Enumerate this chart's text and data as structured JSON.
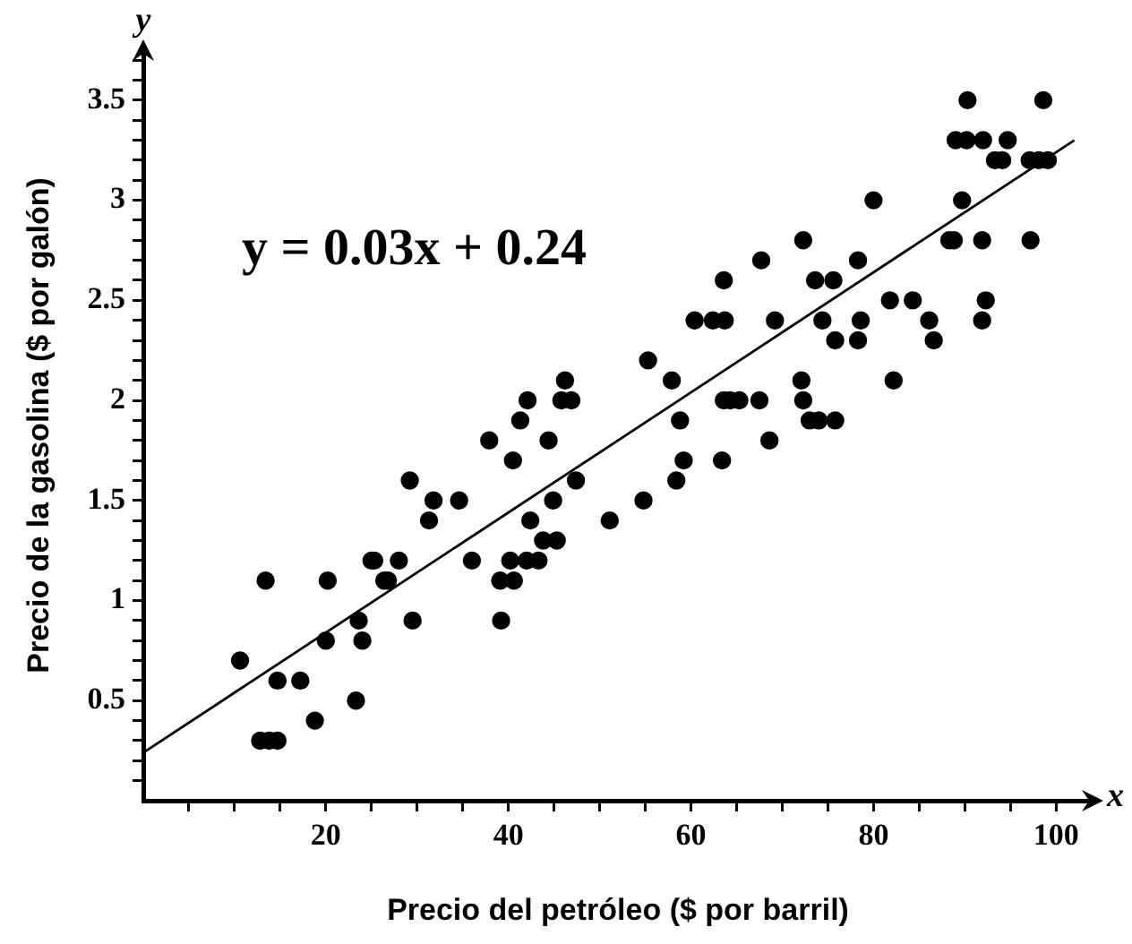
{
  "chart_data": {
    "type": "scatter",
    "xlabel": "Precio del petróleo ($ por barril)",
    "ylabel": "Precio de la gasolina ($ por galón)",
    "annotations": [
      "y = 0.03x + 0.24",
      "x",
      "y"
    ],
    "xlim": [
      0,
      104
    ],
    "ylim": [
      0,
      3.75
    ],
    "xticks": [
      {
        "value": 5,
        "label": null
      },
      {
        "value": 10,
        "label": null
      },
      {
        "value": 15,
        "label": null
      },
      20,
      {
        "value": 25,
        "label": null
      },
      {
        "value": 30,
        "label": null
      },
      {
        "value": 35,
        "label": null
      },
      40,
      {
        "value": 45,
        "label": null
      },
      {
        "value": 50,
        "label": null
      },
      {
        "value": 55,
        "label": null
      },
      60,
      {
        "value": 65,
        "label": null
      },
      {
        "value": 70,
        "label": null
      },
      {
        "value": 75,
        "label": null
      },
      80,
      {
        "value": 85,
        "label": null
      },
      {
        "value": 90,
        "label": null
      },
      {
        "value": 95,
        "label": null
      },
      100
    ],
    "yticks": [
      {
        "value": 0.1,
        "label": null
      },
      {
        "value": 0.2,
        "label": null
      },
      {
        "value": 0.3,
        "label": null
      },
      {
        "value": 0.4,
        "label": null
      },
      0.5,
      {
        "value": 0.6,
        "label": null
      },
      {
        "value": 0.7,
        "label": null
      },
      {
        "value": 0.8,
        "label": null
      },
      {
        "value": 0.9,
        "label": null
      },
      1,
      {
        "value": 1.1,
        "label": null
      },
      {
        "value": 1.2,
        "label": null
      },
      {
        "value": 1.3,
        "label": null
      },
      {
        "value": 1.4,
        "label": null
      },
      1.5,
      {
        "value": 1.6,
        "label": null
      },
      {
        "value": 1.7,
        "label": null
      },
      {
        "value": 1.8,
        "label": null
      },
      {
        "value": 1.9,
        "label": null
      },
      2,
      {
        "value": 2.1,
        "label": null
      },
      {
        "value": 2.2,
        "label": null
      },
      {
        "value": 2.3,
        "label": null
      },
      {
        "value": 2.4,
        "label": null
      },
      2.5,
      {
        "value": 2.6,
        "label": null
      },
      {
        "value": 2.7,
        "label": null
      },
      {
        "value": 2.8,
        "label": null
      },
      {
        "value": 2.9,
        "label": null
      },
      3,
      {
        "value": 3.1,
        "label": null
      },
      {
        "value": 3.2,
        "label": null
      },
      {
        "value": 3.3,
        "label": null
      },
      {
        "value": 3.4,
        "label": null
      },
      3.5,
      {
        "value": 3.6,
        "label": null
      },
      {
        "value": 3.7,
        "label": null
      }
    ],
    "grid": false,
    "series": [
      {
        "marker": "circle",
        "color": "#000000",
        "x": [
          10.6,
          12.8,
          13.8,
          14.7,
          13.4,
          14.7,
          17.2,
          18.8,
          20,
          20.2,
          23.3,
          23.6,
          24,
          25,
          25.3,
          26.4,
          26.8,
          28,
          29.2,
          29.5,
          31.3,
          31.8,
          34.6,
          36,
          37.9,
          39.1,
          39.2,
          40.2,
          40.6,
          40.5,
          41.3,
          42,
          42.1,
          42.4,
          43.3,
          43.8,
          44.4,
          44.9,
          45.3,
          45.8,
          46.9,
          46.2,
          47.4,
          51.1,
          54.8,
          55.3,
          57.9,
          58.4,
          58.8,
          59.2,
          60.4,
          62.4,
          63.4,
          63.6,
          63.7,
          63.6,
          64.3,
          65.3,
          67.5,
          67.7,
          68.6,
          69.2,
          72.3,
          72.1,
          72.3,
          73,
          74,
          75.8,
          73.6,
          74.4,
          75.6,
          75.8,
          78.3,
          78.3,
          78.6,
          80,
          81.8,
          82.2,
          84.3,
          86.1,
          86.6,
          88.3,
          88.8,
          89.7,
          89,
          90.2,
          92,
          94.7,
          90.3,
          98.6,
          93.3,
          94.1,
          97.1,
          98.1,
          99.1,
          91.9,
          97.2,
          91.9,
          92.3
        ],
        "values": [
          0.7,
          0.3,
          0.3,
          0.3,
          1.1,
          0.6,
          0.6,
          0.4,
          0.8,
          1.1,
          0.5,
          0.9,
          0.8,
          1.2,
          1.2,
          1.1,
          1.1,
          1.2,
          1.6,
          0.9,
          1.4,
          1.5,
          1.5,
          1.2,
          1.8,
          1.1,
          0.9,
          1.2,
          1.1,
          1.7,
          1.9,
          1.2,
          2,
          1.4,
          1.2,
          1.3,
          1.8,
          1.5,
          1.3,
          2,
          2,
          2.1,
          1.6,
          1.4,
          1.5,
          2.2,
          2.1,
          1.6,
          1.9,
          1.7,
          2.4,
          2.4,
          1.7,
          2.6,
          2.4,
          2,
          2,
          2,
          2,
          2.7,
          1.8,
          2.4,
          2.8,
          2.1,
          2,
          1.9,
          1.9,
          1.9,
          2.6,
          2.4,
          2.6,
          2.3,
          2.7,
          2.3,
          2.4,
          3,
          2.5,
          2.1,
          2.5,
          2.4,
          2.3,
          2.8,
          2.8,
          3,
          3.3,
          3.3,
          3.3,
          3.3,
          3.5,
          3.5,
          3.2,
          3.2,
          3.2,
          3.2,
          3.2,
          2.8,
          2.8,
          2.4,
          2.5
        ]
      },
      {
        "type": "line",
        "marker": "none",
        "color": "#000000",
        "x": [
          0,
          102
        ],
        "values": [
          0.24,
          3.3
        ]
      }
    ]
  }
}
